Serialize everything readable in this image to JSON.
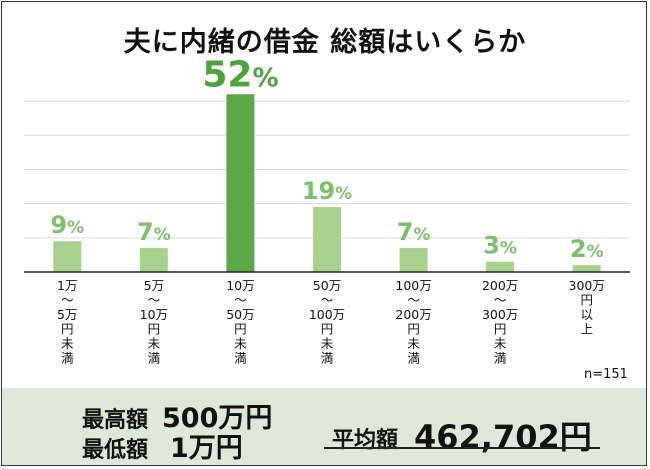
{
  "chart_data": {
    "type": "bar",
    "title": "夫に内緒の借金 総額はいくらか",
    "categories": [
      "1万〜5万円未満",
      "5万〜10万円未満",
      "10万〜50万円未満",
      "50万〜100万円未満",
      "100万〜200万円未満",
      "200万〜300万円未満",
      "300万円以上"
    ],
    "category_lines": [
      [
        "1万",
        "〜",
        "5万",
        "円",
        "未",
        "満"
      ],
      [
        "5万",
        "〜",
        "10万",
        "円",
        "未",
        "満"
      ],
      [
        "10万",
        "〜",
        "50万",
        "円",
        "未",
        "満"
      ],
      [
        "50万",
        "〜",
        "100万",
        "円",
        "未",
        "満"
      ],
      [
        "100万",
        "〜",
        "200万",
        "円",
        "未",
        "満"
      ],
      [
        "200万",
        "〜",
        "300万",
        "円",
        "未",
        "満"
      ],
      [
        "300万",
        "円",
        "以",
        "上"
      ]
    ],
    "values": [
      9,
      7,
      52,
      19,
      7,
      3,
      2
    ],
    "value_labels": [
      "9%",
      "7%",
      "52%",
      "19%",
      "7%",
      "3%",
      "2%"
    ],
    "ylim": [
      0,
      55
    ],
    "grid": true,
    "colors": {
      "bar": "#a9d18e",
      "highlight": "#5aa847",
      "label": "#7cc06a",
      "highlight_label": "#4ea33c",
      "grid": "#d9d9d9"
    }
  },
  "note": "n=151",
  "footer": {
    "max_label": "最高額",
    "max_value": "500万円",
    "min_label": "最低額",
    "min_value": "1万円",
    "avg_label": "平均額",
    "avg_value": "462,702円"
  }
}
